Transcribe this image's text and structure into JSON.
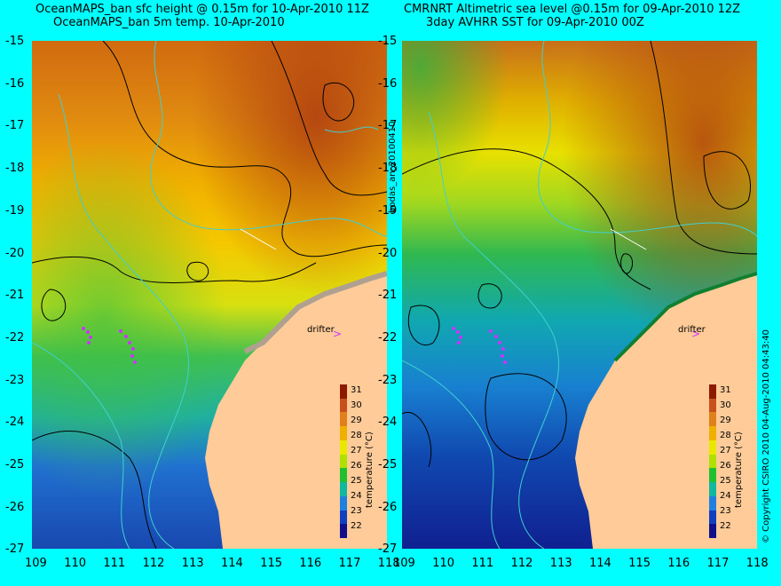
{
  "left_panel": {
    "title_line1": "OceanMAPS_ban sfc height @ 0.15m for 10-Apr-2010 11Z",
    "title_line2": "OceanMAPS_ban 5m temp. 10-Apr-2010",
    "drifter_label": "drifter",
    "colorbar_label": "temperature (°C)"
  },
  "right_panel": {
    "title_line1": "CMRNRT Altimetric sea level  @0.15m  for 09-Apr-2010 12Z",
    "title_line2": "3day AVHRR SST for 09-Apr-2010 00Z",
    "drifter_label": "drifter",
    "colorbar_label": "temperature (°C)",
    "side_label": "bodas_an_20100410",
    "copyright": "© Copyright CSIRO 2010   04-Aug-2010 04:43:40"
  },
  "axes": {
    "lat_ticks": [
      "-15",
      "-16",
      "-17",
      "-18",
      "-19",
      "-20",
      "-21",
      "-22",
      "-23",
      "-24",
      "-25",
      "-26",
      "-27"
    ],
    "lon_ticks": [
      "109",
      "110",
      "111",
      "112",
      "113",
      "114",
      "115",
      "116",
      "117",
      "118"
    ]
  },
  "colorbar": {
    "ticks": [
      "31",
      "30",
      "29",
      "28",
      "27",
      "26",
      "25",
      "24",
      "23",
      "22"
    ],
    "colors": [
      "#8b1a00",
      "#c8501a",
      "#e0801a",
      "#f0b000",
      "#e8e800",
      "#b0e000",
      "#20c030",
      "#10b8a0",
      "#2080e0",
      "#1040c0",
      "#10108a"
    ]
  },
  "colors": {
    "background": "#00ffff",
    "land": "#ffcc99",
    "drifter_marker": "#cc33ff"
  }
}
